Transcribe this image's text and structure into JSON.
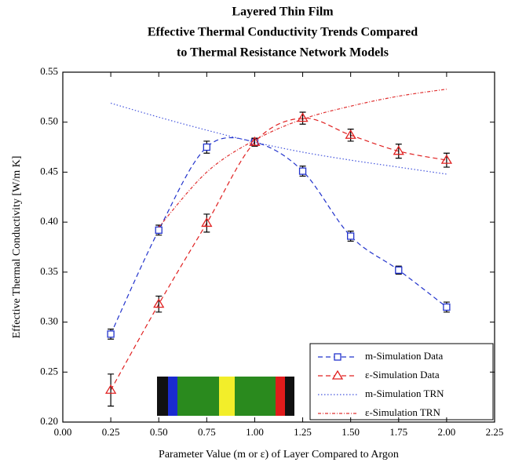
{
  "chart_data": {
    "type": "line",
    "title": [
      "Layered Thin Film",
      "Effective Thermal Conductivity Trends Compared",
      "to Thermal Resistance Network Models"
    ],
    "x_label": "Parameter Value (m or ε) of Layer Compared to Argon",
    "y_label": "Effective Thermal Conductivity [W/m K]",
    "x": [
      0.25,
      0.5,
      0.75,
      1.0,
      1.25,
      1.5,
      1.75,
      2.0
    ],
    "xlim": [
      0,
      2.25
    ],
    "xticks": [
      {
        "value": 0,
        "label": "0.00"
      },
      0.25,
      {
        "value": 0.5,
        "label": "0.50"
      },
      0.75,
      {
        "value": 1,
        "label": "1.00"
      },
      1.25,
      {
        "value": 1.5,
        "label": "1.50"
      },
      1.75,
      {
        "value": 2,
        "label": "2.00"
      },
      2.25
    ],
    "ylim": [
      0.2,
      0.55
    ],
    "yticks": [
      {
        "value": 0.2,
        "label": "0.20"
      },
      0.25,
      {
        "value": 0.3,
        "label": "0.30"
      },
      0.35,
      {
        "value": 0.4,
        "label": "0.40"
      },
      0.45,
      {
        "value": 0.5,
        "label": "0.50"
      },
      0.55
    ],
    "legend": "lower right",
    "series": [
      {
        "name": "m-Simulation Data",
        "color": "#2233cc",
        "line_style": "dashed",
        "marker": "square",
        "values": [
          0.288,
          0.392,
          0.475,
          0.48,
          0.451,
          0.386,
          0.352,
          0.315
        ],
        "errors": [
          0.005,
          0.005,
          0.006,
          0.004,
          0.005,
          0.005,
          0.004,
          0.005
        ]
      },
      {
        "name": "ε-Simulation Data",
        "color": "#e02020",
        "line_style": "dashed",
        "marker": "triangle",
        "values": [
          0.232,
          0.318,
          0.399,
          0.48,
          0.504,
          0.487,
          0.471,
          0.462
        ],
        "errors": [
          0.016,
          0.008,
          0.009,
          0.004,
          0.006,
          0.006,
          0.007,
          0.007
        ]
      },
      {
        "name": "m-Simulation TRN",
        "color": "#4455dd",
        "line_style": "dotted",
        "marker": "none",
        "values": [
          0.519,
          0.505,
          0.492,
          0.48,
          0.47,
          0.462,
          0.455,
          0.448
        ]
      },
      {
        "name": "ε-Simulation TRN",
        "color": "#e03030",
        "line_style": "dashdot",
        "marker": "none",
        "values": [
          null,
          0.395,
          0.45,
          0.482,
          0.503,
          0.516,
          0.526,
          0.533
        ]
      }
    ]
  }
}
